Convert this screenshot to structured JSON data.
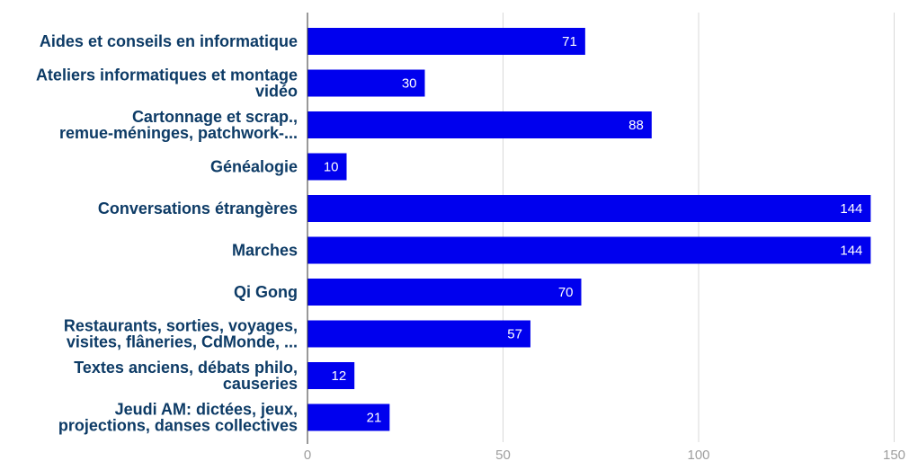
{
  "chart_data": {
    "type": "bar",
    "orientation": "horizontal",
    "title": "",
    "xlabel": "",
    "ylabel": "",
    "xlim": [
      0,
      150
    ],
    "x_ticks": [
      0,
      50,
      100,
      150
    ],
    "grid": true,
    "legend": "none",
    "categories": [
      [
        "Aides et conseils en informatique"
      ],
      [
        "Ateliers informatiques et montage",
        "vidéo"
      ],
      [
        "Cartonnage et scrap.,",
        "remue-méninges, patchwork-..."
      ],
      [
        "Généalogie"
      ],
      [
        "Conversations étrangères"
      ],
      [
        "Marches"
      ],
      [
        "Qi Gong"
      ],
      [
        "Restaurants, sorties, voyages,",
        "visites, flâneries, CdMonde, ..."
      ],
      [
        "Textes anciens, débats philo,",
        "causeries"
      ],
      [
        "Jeudi AM: dictées, jeux,",
        "projections, danses collectives"
      ]
    ],
    "values": [
      71,
      30,
      88,
      10,
      144,
      144,
      70,
      57,
      12,
      21
    ],
    "colors": {
      "bar": "#0000ee",
      "label_text": "#0d3b66",
      "data_label": "#ffffff",
      "tick_text": "#9e9e9e",
      "grid": "#d9d9d9",
      "axis": "#333333"
    }
  }
}
